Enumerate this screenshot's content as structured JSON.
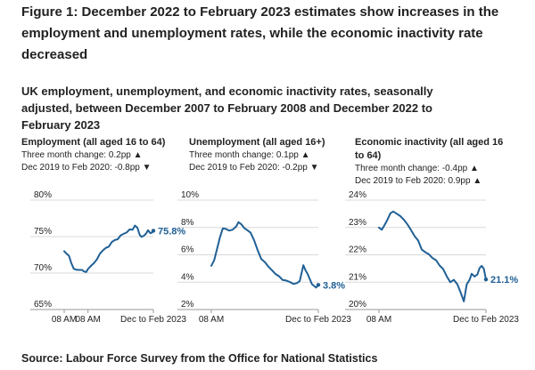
{
  "figure": {
    "title": "Figure 1: December 2022 to February 2023 estimates show increases in the employment and unemployment rates, while the economic inactivity rate decreased",
    "subtitle": "UK employment, unemployment, and economic inactivity rates, seasonally adjusted, between December 2007 to February 2008 and December 2022 to February 2023",
    "source": "Source: Labour Force Survey from the Office for National Statistics"
  },
  "colors": {
    "line": "#206095",
    "grid": "#d9d9d9",
    "text": "#222222"
  },
  "panels": [
    {
      "title": "Employment (all aged 16 to 64)",
      "stat1": "Three month change: 0.2pp ▲",
      "stat2": "Dec 2019 to Feb 2020: -0.8pp ▼"
    },
    {
      "title": "Unemployment (all aged 16+)",
      "stat1": "Three month change: 0.1pp ▲",
      "stat2": "Dec 2019 to Feb 2020: -0.2pp ▼"
    },
    {
      "title": "Economic inactivity (all aged 16 to 64)",
      "stat1": "Three month change: -0.4pp ▲",
      "stat2": "Dec 2019 to Feb 2020: 0.9pp ▲"
    }
  ],
  "chart_data": [
    {
      "type": "line",
      "title": "Employment (all aged 16 to 64)",
      "x_start": 2008.0,
      "x_end": 2023.0,
      "x_ticks": [
        {
          "x": 2008.0,
          "label": "08 AM"
        },
        {
          "x": 2012.0,
          "label": "08 AM"
        },
        {
          "x": 2023.0,
          "label": "Dec to Feb 2023"
        }
      ],
      "ylim": [
        65,
        80
      ],
      "yticks": [
        {
          "v": 65,
          "label": "65%"
        },
        {
          "v": 70,
          "label": "70%"
        },
        {
          "v": 75,
          "label": "75%"
        },
        {
          "v": 80,
          "label": "80%"
        }
      ],
      "end_label": "75.8%",
      "series": [
        {
          "name": "Employment rate",
          "points": [
            [
              2008.0,
              73.0
            ],
            [
              2008.4,
              72.7
            ],
            [
              2008.8,
              72.3
            ],
            [
              2009.2,
              71.4
            ],
            [
              2009.6,
              70.6
            ],
            [
              2010.0,
              70.4
            ],
            [
              2010.5,
              70.5
            ],
            [
              2011.0,
              70.4
            ],
            [
              2011.3,
              70.2
            ],
            [
              2011.7,
              70.2
            ],
            [
              2012.0,
              70.5
            ],
            [
              2012.5,
              71.0
            ],
            [
              2013.0,
              71.4
            ],
            [
              2013.5,
              71.8
            ],
            [
              2014.0,
              72.7
            ],
            [
              2014.5,
              73.1
            ],
            [
              2015.0,
              73.4
            ],
            [
              2015.5,
              73.7
            ],
            [
              2016.0,
              74.2
            ],
            [
              2016.5,
              74.5
            ],
            [
              2017.0,
              74.7
            ],
            [
              2017.5,
              75.1
            ],
            [
              2018.0,
              75.4
            ],
            [
              2018.5,
              75.6
            ],
            [
              2019.0,
              75.9
            ],
            [
              2019.5,
              76.0
            ],
            [
              2019.9,
              76.5
            ],
            [
              2020.3,
              76.2
            ],
            [
              2020.7,
              75.3
            ],
            [
              2021.0,
              74.9
            ],
            [
              2021.4,
              75.1
            ],
            [
              2021.8,
              75.5
            ],
            [
              2022.1,
              75.8
            ],
            [
              2022.5,
              75.5
            ],
            [
              2022.8,
              75.6
            ],
            [
              2023.0,
              75.8
            ]
          ]
        }
      ]
    },
    {
      "type": "line",
      "title": "Unemployment (all aged 16+)",
      "x_start": 2008.0,
      "x_end": 2023.0,
      "x_ticks": [
        {
          "x": 2008.0,
          "label": "08 AM"
        },
        {
          "x": 2023.0,
          "label": "Dec to Feb 2023"
        }
      ],
      "ylim": [
        2,
        10
      ],
      "yticks": [
        {
          "v": 2,
          "label": "2%"
        },
        {
          "v": 4,
          "label": "4%"
        },
        {
          "v": 6,
          "label": "6%"
        },
        {
          "v": 8,
          "label": "8%"
        },
        {
          "v": 10,
          "label": "10%"
        }
      ],
      "end_label": "3.8%",
      "series": [
        {
          "name": "Unemployment rate",
          "points": [
            [
              2008.0,
              5.2
            ],
            [
              2008.4,
              5.6
            ],
            [
              2008.8,
              6.4
            ],
            [
              2009.2,
              7.3
            ],
            [
              2009.6,
              7.9
            ],
            [
              2010.0,
              7.9
            ],
            [
              2010.5,
              7.8
            ],
            [
              2011.0,
              7.8
            ],
            [
              2011.5,
              8.1
            ],
            [
              2011.8,
              8.4
            ],
            [
              2012.2,
              8.2
            ],
            [
              2012.6,
              8.0
            ],
            [
              2013.0,
              7.8
            ],
            [
              2013.5,
              7.6
            ],
            [
              2014.0,
              7.1
            ],
            [
              2014.5,
              6.3
            ],
            [
              2015.0,
              5.7
            ],
            [
              2015.5,
              5.5
            ],
            [
              2016.0,
              5.1
            ],
            [
              2016.5,
              4.9
            ],
            [
              2017.0,
              4.6
            ],
            [
              2017.5,
              4.4
            ],
            [
              2018.0,
              4.2
            ],
            [
              2018.5,
              4.1
            ],
            [
              2019.0,
              4.0
            ],
            [
              2019.5,
              3.9
            ],
            [
              2020.0,
              3.9
            ],
            [
              2020.4,
              4.1
            ],
            [
              2020.7,
              4.8
            ],
            [
              2020.9,
              5.2
            ],
            [
              2021.2,
              4.9
            ],
            [
              2021.5,
              4.6
            ],
            [
              2021.8,
              4.2
            ],
            [
              2022.1,
              3.9
            ],
            [
              2022.4,
              3.7
            ],
            [
              2022.7,
              3.6
            ],
            [
              2023.0,
              3.8
            ]
          ]
        }
      ]
    },
    {
      "type": "line",
      "title": "Economic inactivity (all aged 16 to 64)",
      "x_start": 2008.0,
      "x_end": 2023.0,
      "x_ticks": [
        {
          "x": 2008.0,
          "label": "08 AM"
        },
        {
          "x": 2023.0,
          "label": "Dec to Feb 2023"
        }
      ],
      "ylim": [
        20,
        24
      ],
      "yticks": [
        {
          "v": 20,
          "label": "20%"
        },
        {
          "v": 21,
          "label": "21%"
        },
        {
          "v": 22,
          "label": "22%"
        },
        {
          "v": 23,
          "label": "23%"
        },
        {
          "v": 24,
          "label": "24%"
        }
      ],
      "end_label": "21.1%",
      "series": [
        {
          "name": "Economic inactivity rate",
          "points": [
            [
              2008.0,
              23.0
            ],
            [
              2008.4,
              22.9
            ],
            [
              2008.8,
              23.1
            ],
            [
              2009.2,
              23.3
            ],
            [
              2009.6,
              23.5
            ],
            [
              2010.0,
              23.6
            ],
            [
              2010.5,
              23.5
            ],
            [
              2011.0,
              23.4
            ],
            [
              2011.5,
              23.3
            ],
            [
              2012.0,
              23.1
            ],
            [
              2012.5,
              22.9
            ],
            [
              2013.0,
              22.7
            ],
            [
              2013.5,
              22.5
            ],
            [
              2014.0,
              22.2
            ],
            [
              2014.5,
              22.1
            ],
            [
              2015.0,
              22.0
            ],
            [
              2015.5,
              21.9
            ],
            [
              2016.0,
              21.8
            ],
            [
              2016.5,
              21.6
            ],
            [
              2017.0,
              21.5
            ],
            [
              2017.5,
              21.2
            ],
            [
              2018.0,
              21.0
            ],
            [
              2018.5,
              21.1
            ],
            [
              2019.0,
              20.9
            ],
            [
              2019.5,
              20.6
            ],
            [
              2019.9,
              20.3
            ],
            [
              2020.3,
              20.9
            ],
            [
              2020.7,
              21.1
            ],
            [
              2021.0,
              21.3
            ],
            [
              2021.4,
              21.2
            ],
            [
              2021.8,
              21.3
            ],
            [
              2022.1,
              21.5
            ],
            [
              2022.4,
              21.6
            ],
            [
              2022.7,
              21.5
            ],
            [
              2023.0,
              21.1
            ]
          ]
        }
      ]
    }
  ]
}
